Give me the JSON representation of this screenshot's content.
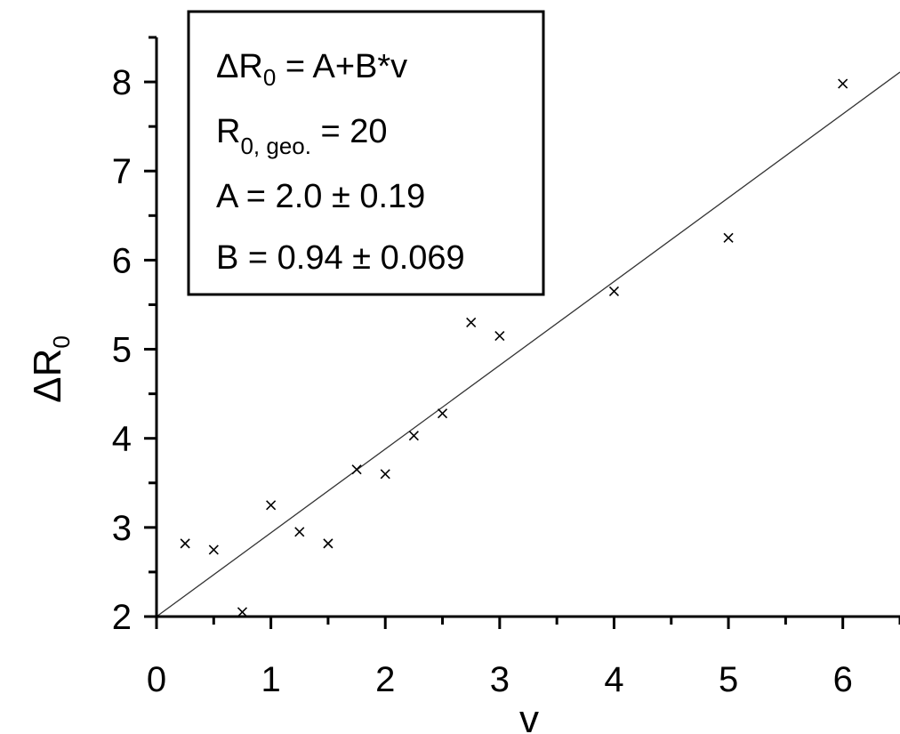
{
  "chart_data": {
    "type": "scatter",
    "title": "",
    "xlabel": "v",
    "ylabel": {
      "symbol": "Δ",
      "main": "R",
      "sub": "0"
    },
    "xlim": [
      0,
      6.5
    ],
    "ylim": [
      2,
      8.5
    ],
    "x_ticks": [
      0,
      1,
      2,
      3,
      4,
      5,
      6
    ],
    "y_ticks": [
      2,
      3,
      4,
      5,
      6,
      7,
      8
    ],
    "minor_x_step": 0.5,
    "minor_y_step": 0.5,
    "grid": false,
    "marker": "x",
    "points": [
      {
        "x": 0.25,
        "y": 2.82
      },
      {
        "x": 0.5,
        "y": 2.75
      },
      {
        "x": 0.75,
        "y": 2.05
      },
      {
        "x": 1.0,
        "y": 3.25
      },
      {
        "x": 1.25,
        "y": 2.95
      },
      {
        "x": 1.5,
        "y": 2.82
      },
      {
        "x": 1.75,
        "y": 3.65
      },
      {
        "x": 2.0,
        "y": 3.6
      },
      {
        "x": 2.25,
        "y": 4.03
      },
      {
        "x": 2.5,
        "y": 4.28
      },
      {
        "x": 2.75,
        "y": 5.3
      },
      {
        "x": 3.0,
        "y": 5.15
      },
      {
        "x": 4.0,
        "y": 5.65
      },
      {
        "x": 5.0,
        "y": 6.25
      },
      {
        "x": 6.0,
        "y": 7.98
      }
    ],
    "fit_line": {
      "intercept": 2.0,
      "slope": 0.94
    },
    "annotation": {
      "placement": "top-left",
      "lines": [
        {
          "main": "ΔR",
          "sub": "0",
          "rest": " = A+B*v"
        },
        {
          "main": "R",
          "sub": "0, geo.",
          "rest": " = 20"
        },
        {
          "main": "A = 2.0 ± 0.19",
          "sub": "",
          "rest": ""
        },
        {
          "main": "B = 0.94 ± 0.069",
          "sub": "",
          "rest": ""
        }
      ]
    }
  }
}
